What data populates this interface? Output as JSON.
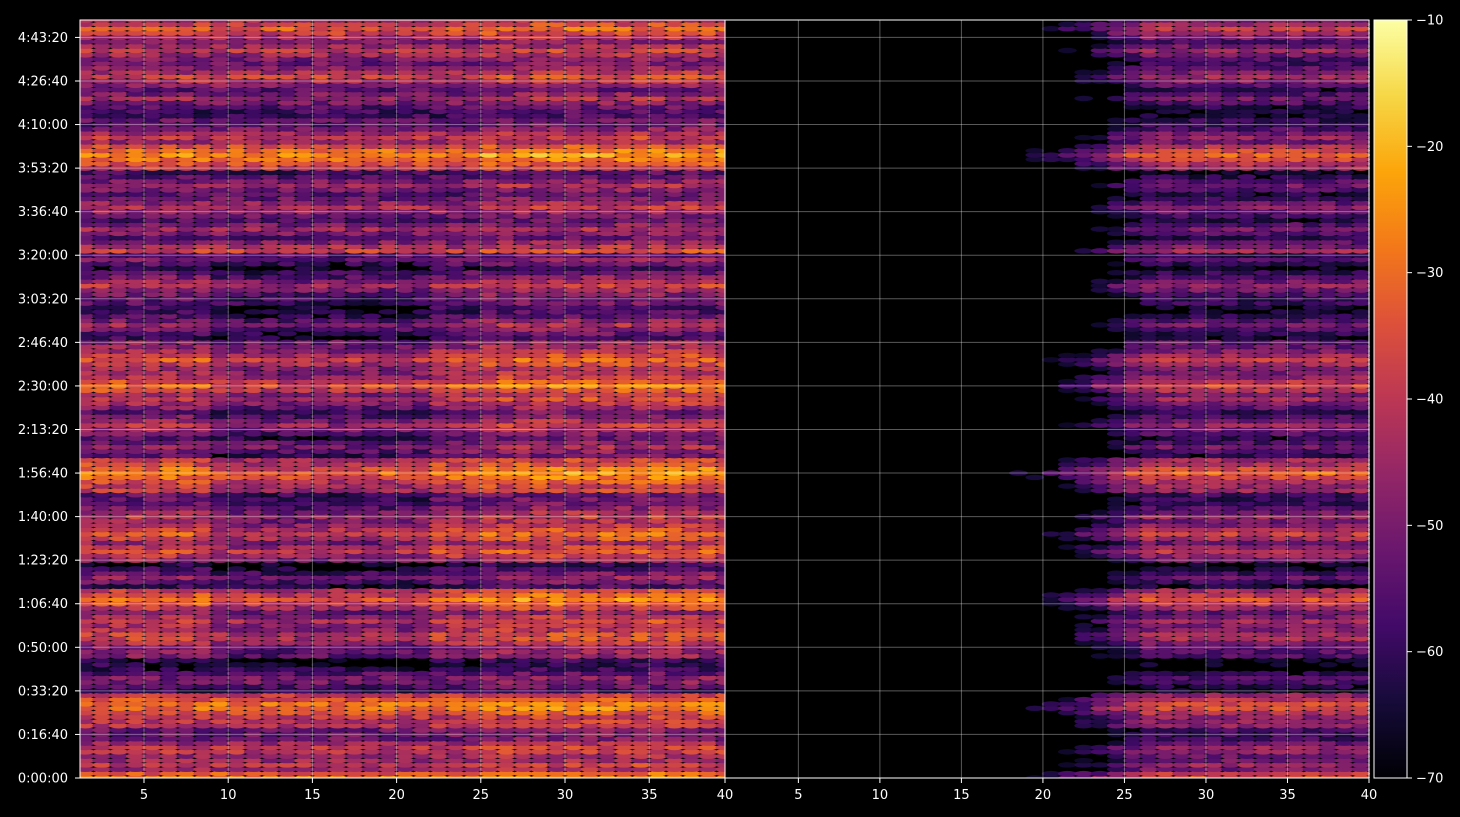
{
  "chart_data": {
    "type": "heatmap",
    "title": "",
    "xlabel": "",
    "ylabel": "",
    "panels": [
      {
        "name": "left",
        "xlim": [
          1.2,
          39.5
        ],
        "x_ticks": [
          5,
          10,
          15,
          20,
          25,
          30,
          35
        ],
        "x_tick_labels": [
          "5",
          "10",
          "15",
          "20",
          "25",
          "30",
          "35"
        ],
        "x_range_cells": [
          1,
          39
        ]
      },
      {
        "name": "right",
        "xlim": [
          0.5,
          40
        ],
        "x_ticks": [
          5,
          10,
          15,
          20,
          25,
          30,
          35,
          40
        ],
        "x_tick_labels": [
          "5",
          "10",
          "15",
          "20",
          "25",
          "30",
          "35",
          "40"
        ],
        "x_range_cells": [
          1,
          39
        ]
      }
    ],
    "left_edge_tick": "40",
    "ylim_seconds": [
      0,
      17400
    ],
    "y_ticks_seconds": [
      0,
      1000,
      2000,
      3000,
      4000,
      5000,
      6000,
      7000,
      8000,
      9000,
      10000,
      11000,
      12000,
      13000,
      14000,
      15000,
      16000,
      17000
    ],
    "y_tick_labels": [
      "0:00:00",
      "0:16:40",
      "0:33:20",
      "0:50:00",
      "1:06:40",
      "1:23:20",
      "1:40:00",
      "1:56:40",
      "2:13:20",
      "2:30:00",
      "2:46:40",
      "3:03:20",
      "3:20:00",
      "3:36:40",
      "3:53:20",
      "4:10:00",
      "4:26:40",
      "4:43:20"
    ],
    "colorbar": {
      "colormap": "inferno",
      "min": -70,
      "max": -10,
      "ticks": [
        -70,
        -60,
        -50,
        -40,
        -30,
        -20,
        -10
      ],
      "tick_labels": [
        "−70",
        "−60",
        "−50",
        "−40",
        "−30",
        "−20",
        "−10"
      ]
    },
    "strong_rows_seconds": [
      7000,
      9000,
      10000,
      10400,
      11300,
      12100,
      14300,
      16800,
      5600,
      4100,
      3600,
      3200,
      1600,
      200,
      500
    ],
    "row_levels_left": [
      {
        "t": 0,
        "level": -28
      },
      {
        "t": 300,
        "level": -40
      },
      {
        "t": 650,
        "level": -38
      },
      {
        "t": 1650,
        "level": -27
      },
      {
        "t": 2250,
        "level": -48
      },
      {
        "t": 3250,
        "level": -35
      },
      {
        "t": 3600,
        "level": -38
      },
      {
        "t": 4100,
        "level": -28
      },
      {
        "t": 4600,
        "level": -48
      },
      {
        "t": 5200,
        "level": -35
      },
      {
        "t": 5600,
        "level": -32
      },
      {
        "t": 6000,
        "level": -40
      },
      {
        "t": 7000,
        "level": -25
      },
      {
        "t": 7600,
        "level": -45
      },
      {
        "t": 8100,
        "level": -40
      },
      {
        "t": 8700,
        "level": -38
      },
      {
        "t": 9000,
        "level": -30
      },
      {
        "t": 9600,
        "level": -33
      },
      {
        "t": 10400,
        "level": -45
      },
      {
        "t": 11300,
        "level": -40
      },
      {
        "t": 11900,
        "level": -50
      },
      {
        "t": 12100,
        "level": -38
      },
      {
        "t": 12600,
        "level": -45
      },
      {
        "t": 13100,
        "level": -42
      },
      {
        "t": 13600,
        "level": -45
      },
      {
        "t": 14300,
        "level": -25
      },
      {
        "t": 14700,
        "level": -40
      },
      {
        "t": 15600,
        "level": -45
      },
      {
        "t": 16100,
        "level": -38
      },
      {
        "t": 16700,
        "level": -40
      },
      {
        "t": 17200,
        "level": -33
      }
    ],
    "right_panel_onset_x": 26
  }
}
